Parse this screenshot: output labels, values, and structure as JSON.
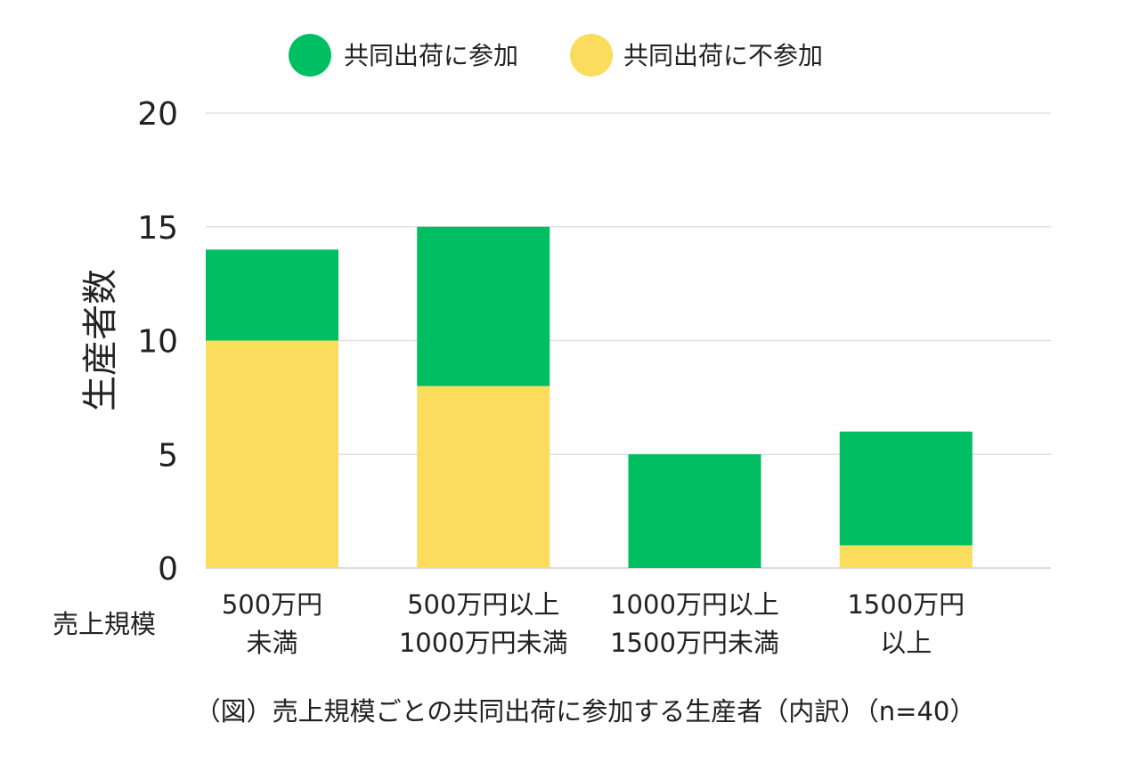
{
  "colors": {
    "participate": "#00BE62",
    "not_participate": "#FBDC5C"
  },
  "chart_data": {
    "type": "bar",
    "stacked": true,
    "categories": [
      [
        "500万円",
        "未満"
      ],
      [
        "500万円以上",
        "1000万円未満"
      ],
      [
        "1000万円以上",
        "1500万円未満"
      ],
      [
        "1500万円",
        "以上"
      ]
    ],
    "series": [
      {
        "name": "共同出荷に不参加",
        "color": "#FBDC5C",
        "values": [
          10,
          8,
          0,
          1
        ]
      },
      {
        "name": "共同出荷に参加",
        "color": "#00BE62",
        "values": [
          4,
          7,
          5,
          5
        ]
      }
    ],
    "legend_order": [
      "共同出荷に参加",
      "共同出荷に不参加"
    ],
    "legend_position": "top",
    "ylabel": "生産者数",
    "xlabel": "売上規模",
    "ylim": [
      0,
      20
    ],
    "yticks": [
      0,
      5,
      10,
      15,
      20
    ],
    "grid": true,
    "caption": "（図）売上規模ごとの共同出荷に参加する生産者（内訳）（n=40）"
  }
}
